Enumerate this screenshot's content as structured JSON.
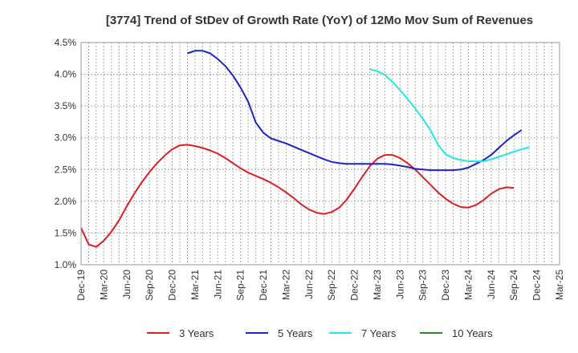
{
  "chart_data": {
    "type": "line",
    "title": "[3774]  Trend of StDev of Growth Rate (YoY) of 12Mo Mov Sum of Revenues",
    "xlabel": "",
    "ylabel": "",
    "y_tick_labels": [
      "1.0%",
      "1.5%",
      "2.0%",
      "2.5%",
      "3.0%",
      "3.5%",
      "4.0%",
      "4.5%"
    ],
    "y_ticks": [
      1.0,
      1.5,
      2.0,
      2.5,
      3.0,
      3.5,
      4.0,
      4.5
    ],
    "ylim": [
      1.0,
      4.5
    ],
    "x_tick_labels": [
      "Dec-19",
      "Mar-20",
      "Jun-20",
      "Sep-20",
      "Dec-20",
      "Mar-21",
      "Jun-21",
      "Sep-21",
      "Dec-21",
      "Mar-22",
      "Jun-22",
      "Sep-22",
      "Dec-22",
      "Mar-23",
      "Jun-23",
      "Sep-23",
      "Dec-23",
      "Mar-24",
      "Jun-24",
      "Sep-24",
      "Dec-24",
      "Mar-25"
    ],
    "x_range_months": [
      0,
      63
    ],
    "grid": true,
    "legend_position": "bottom",
    "series": [
      {
        "name": "3 Years",
        "color": "#dd1f1f",
        "start_month": 0,
        "values": [
          1.58,
          1.32,
          1.28,
          1.38,
          1.52,
          1.7,
          1.92,
          2.12,
          2.3,
          2.46,
          2.6,
          2.72,
          2.82,
          2.88,
          2.89,
          2.87,
          2.84,
          2.8,
          2.75,
          2.68,
          2.6,
          2.52,
          2.45,
          2.4,
          2.35,
          2.29,
          2.22,
          2.14,
          2.05,
          1.95,
          1.87,
          1.82,
          1.8,
          1.83,
          1.9,
          2.03,
          2.2,
          2.38,
          2.55,
          2.67,
          2.73,
          2.73,
          2.68,
          2.6,
          2.5,
          2.38,
          2.26,
          2.14,
          2.04,
          1.96,
          1.91,
          1.9,
          1.94,
          2.02,
          2.12,
          2.19,
          2.22,
          2.21
        ]
      },
      {
        "name": "5 Years",
        "color": "#1a25c7",
        "start_month": 14,
        "values": [
          4.33,
          4.37,
          4.37,
          4.33,
          4.24,
          4.13,
          3.98,
          3.79,
          3.57,
          3.24,
          3.08,
          2.99,
          2.95,
          2.91,
          2.86,
          2.81,
          2.76,
          2.71,
          2.66,
          2.62,
          2.6,
          2.59,
          2.59,
          2.59,
          2.59,
          2.59,
          2.59,
          2.58,
          2.56,
          2.54,
          2.51,
          2.5,
          2.49,
          2.49,
          2.49,
          2.49,
          2.5,
          2.53,
          2.59,
          2.65,
          2.73,
          2.84,
          2.95,
          3.04,
          3.12
        ]
      },
      {
        "name": "7 Years",
        "color": "#22e8ea",
        "start_month": 38,
        "values": [
          4.08,
          4.05,
          3.99,
          3.88,
          3.75,
          3.61,
          3.46,
          3.3,
          3.12,
          2.89,
          2.74,
          2.68,
          2.65,
          2.63,
          2.63,
          2.63,
          2.66,
          2.7,
          2.74,
          2.78,
          2.82,
          2.85
        ]
      },
      {
        "name": "10 Years",
        "color": "#2a8a2a",
        "start_month": 0,
        "values": []
      }
    ]
  }
}
